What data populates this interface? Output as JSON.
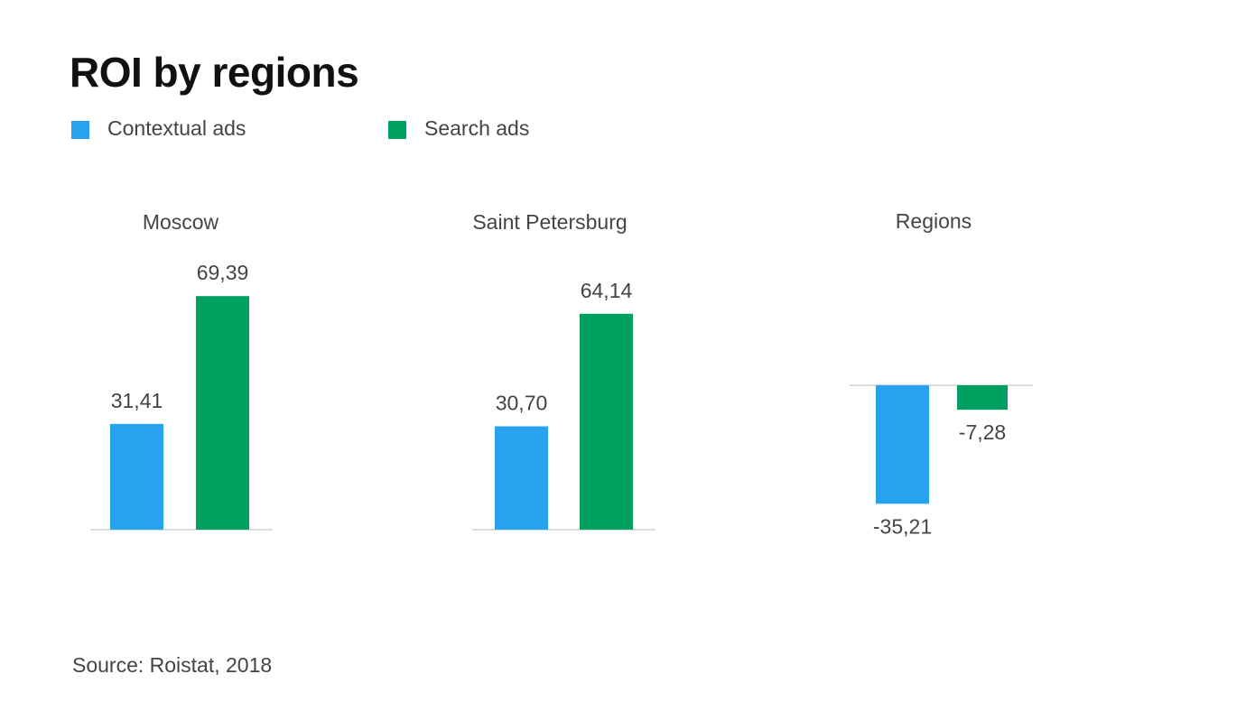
{
  "title": "ROI by regions",
  "legend": {
    "contextual": "Contextual ads",
    "search": "Search ads"
  },
  "source": "Source: Roistat, 2018",
  "colors": {
    "contextual": "#27a3ee",
    "search": "#00a060",
    "axis": "#d0d0d0"
  },
  "chart_data": [
    {
      "type": "bar",
      "title": "Moscow",
      "categories": [
        "Contextual ads",
        "Search ads"
      ],
      "values": [
        31.41,
        69.39
      ],
      "labels": [
        "31,41",
        "69,39"
      ]
    },
    {
      "type": "bar",
      "title": "Saint Petersburg",
      "categories": [
        "Contextual ads",
        "Search ads"
      ],
      "values": [
        30.7,
        64.14
      ],
      "labels": [
        "30,70",
        "64,14"
      ]
    },
    {
      "type": "bar",
      "title": "Regions",
      "categories": [
        "Contextual ads",
        "Search ads"
      ],
      "values": [
        -35.21,
        -7.28
      ],
      "labels": [
        "-35,21",
        "-7,28"
      ]
    }
  ]
}
